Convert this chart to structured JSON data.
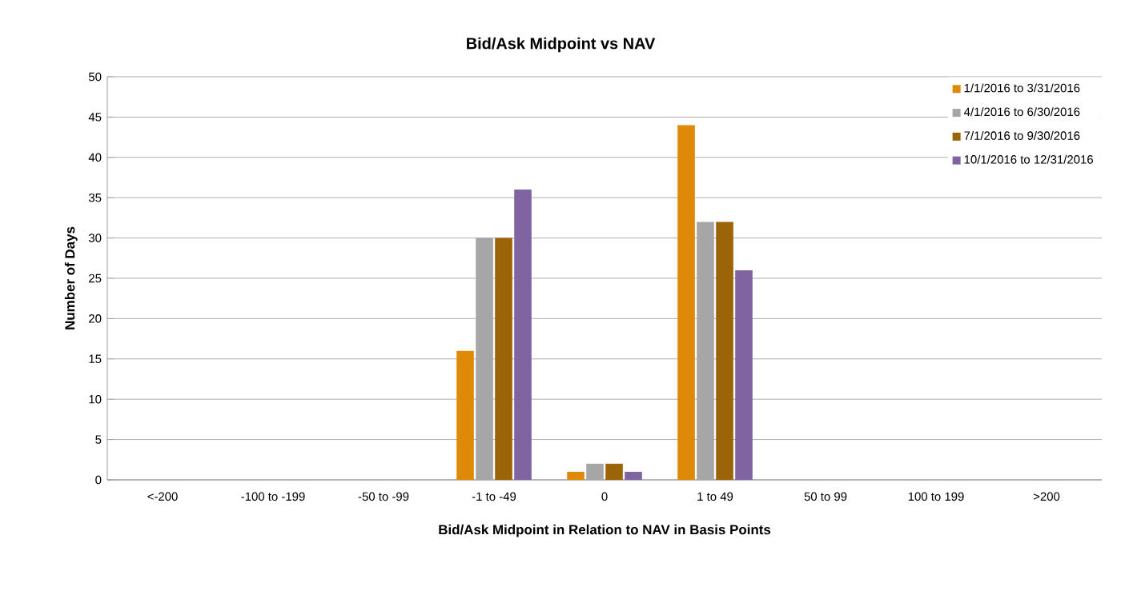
{
  "chart_data": {
    "type": "bar",
    "title": "Bid/Ask Midpoint vs NAV",
    "xlabel": "Bid/Ask Midpoint in Relation to NAV in Basis Points",
    "ylabel": "Number of Days",
    "categories": [
      "<-200",
      "-100 to -199",
      "-50 to -99",
      "-1 to -49",
      "0",
      "1 to 49",
      "50 to 99",
      "100 to 199",
      ">200"
    ],
    "series": [
      {
        "name": "1/1/2016 to 3/31/2016",
        "color": "#de8a08",
        "values": [
          0,
          0,
          0,
          16,
          1,
          44,
          0,
          0,
          0
        ]
      },
      {
        "name": "4/1/2016 to 6/30/2016",
        "color": "#a6a6a6",
        "values": [
          0,
          0,
          0,
          30,
          2,
          32,
          0,
          0,
          0
        ]
      },
      {
        "name": "7/1/2016 to 9/30/2016",
        "color": "#9c6408",
        "values": [
          0,
          0,
          0,
          30,
          2,
          32,
          0,
          0,
          0
        ]
      },
      {
        "name": "10/1/2016 to 12/31/2016",
        "color": "#8064a2",
        "values": [
          0,
          0,
          0,
          36,
          1,
          26,
          0,
          0,
          0
        ]
      }
    ],
    "ylim": [
      0,
      50
    ],
    "yticks": [
      0,
      5,
      10,
      15,
      20,
      25,
      30,
      35,
      40,
      45,
      50
    ],
    "grid": "y",
    "legend": "top right"
  }
}
